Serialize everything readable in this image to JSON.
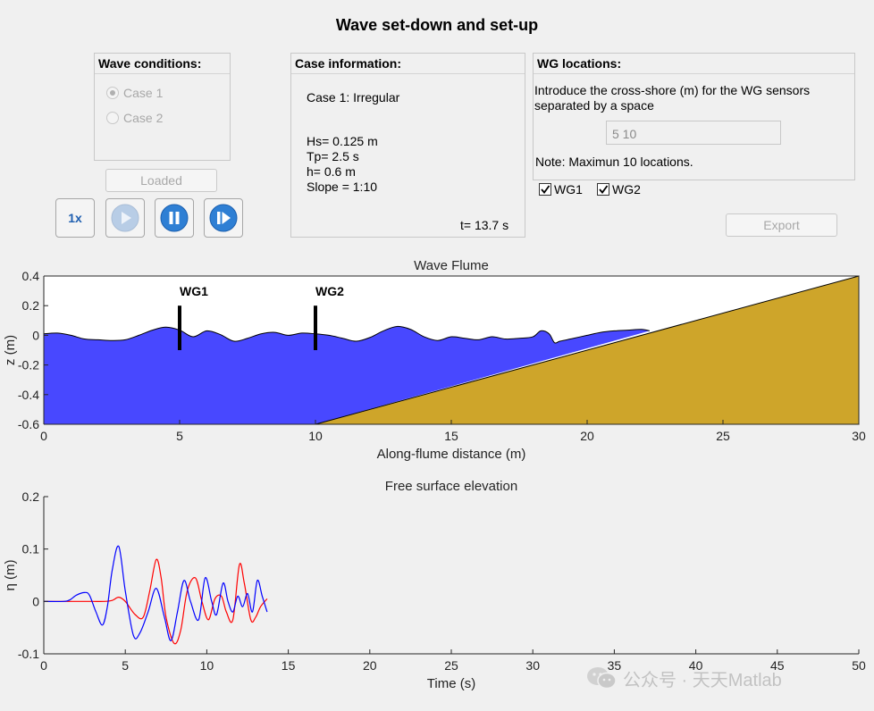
{
  "window": {
    "title": "Wave set-down and set-up"
  },
  "wave_conditions": {
    "title": "Wave conditions:",
    "options": [
      {
        "label": "Case 1",
        "selected": true
      },
      {
        "label": "Case 2",
        "selected": false
      }
    ],
    "load_button": "Loaded"
  },
  "playback": {
    "speed_label": "1x",
    "buttons": [
      "play-icon",
      "pause-icon",
      "step-forward-icon"
    ]
  },
  "case_info": {
    "title": "Case information:",
    "case_name": "Case 1: Irregular",
    "hs": "Hs= 0.125 m",
    "tp": "Tp= 2.5 s",
    "h": "h= 0.6 m",
    "slope": "Slope = 1:10",
    "time": "t= 13.7 s"
  },
  "wg_locations": {
    "title": "WG locations:",
    "instruction": "Introduce the cross-shore (m) for the WG sensors separated by a space",
    "input_value": "5 10",
    "note": "Note: Maximun 10 locations.",
    "checkboxes": [
      {
        "label": "WG1",
        "checked": true
      },
      {
        "label": "WG2",
        "checked": true
      }
    ],
    "export_button": "Export"
  },
  "watermark": "公众号 · 天天Matlab",
  "colors": {
    "water": "#4848ff",
    "beach": "#cea52a",
    "wg1": "#0000ff",
    "wg2": "#ff0000"
  },
  "chart_data": [
    {
      "type": "area",
      "title": "Wave Flume",
      "xlabel": "Along-flume distance (m)",
      "ylabel": "z (m)",
      "xlim": [
        0,
        30
      ],
      "ylim": [
        -0.6,
        0.4
      ],
      "xticks": [
        0,
        5,
        10,
        15,
        20,
        25,
        30
      ],
      "yticks": [
        -0.6,
        -0.4,
        -0.2,
        0,
        0.2,
        0.4
      ],
      "grid": false,
      "water_surface": {
        "x": [
          0,
          0.5,
          1,
          1.5,
          2,
          2.5,
          3,
          3.5,
          4,
          4.5,
          5,
          5.5,
          6,
          6.5,
          7,
          7.5,
          8,
          8.5,
          9,
          9.5,
          10,
          10.5,
          11,
          11.5,
          12,
          12.5,
          13,
          13.5,
          14,
          14.5,
          15,
          15.5,
          16,
          16.5,
          17,
          17.5,
          18,
          18.3,
          18.6,
          18.8,
          19,
          19.5,
          20,
          20.5,
          21,
          21.5,
          22,
          22.3
        ],
        "eta": [
          0.01,
          0.015,
          0.0,
          -0.025,
          -0.03,
          -0.035,
          -0.03,
          0.0,
          0.035,
          0.055,
          0.035,
          -0.01,
          0.03,
          0.005,
          -0.04,
          -0.02,
          0.01,
          0.02,
          0.0,
          0.015,
          0.01,
          0.0,
          -0.02,
          -0.04,
          -0.015,
          0.03,
          0.06,
          0.04,
          -0.01,
          -0.035,
          -0.01,
          -0.02,
          -0.03,
          -0.01,
          -0.025,
          -0.02,
          -0.01,
          0.03,
          0.01,
          -0.05,
          -0.04,
          -0.02,
          0.0,
          0.02,
          0.03,
          0.035,
          0.04,
          0.03
        ]
      },
      "bathymetry": {
        "toe_x": 10,
        "toe_z": -0.6,
        "slope": 0.1,
        "end_x": 30,
        "end_z": 0.4
      },
      "gauges": [
        {
          "name": "WG1",
          "x": 5
        },
        {
          "name": "WG2",
          "x": 10
        }
      ]
    },
    {
      "type": "line",
      "title": "Free surface elevation",
      "xlabel": "Time (s)",
      "ylabel": "η (m)",
      "xlim": [
        0,
        50
      ],
      "ylim": [
        -0.1,
        0.2
      ],
      "xticks": [
        0,
        5,
        10,
        15,
        20,
        25,
        30,
        35,
        40,
        45,
        50
      ],
      "yticks": [
        -0.1,
        0,
        0.1,
        0.2
      ],
      "grid": false,
      "series": [
        {
          "name": "WG1",
          "t": [
            0,
            1.2,
            1.6,
            2.0,
            2.5,
            2.8,
            3.2,
            3.6,
            3.9,
            4.2,
            4.6,
            5.0,
            5.5,
            5.9,
            6.4,
            6.9,
            7.4,
            7.8,
            8.2,
            8.6,
            9.0,
            9.5,
            9.9,
            10.3,
            10.6,
            11.0,
            11.3,
            11.6,
            11.9,
            12.2,
            12.5,
            12.8,
            13.1,
            13.4,
            13.7
          ],
          "eta": [
            0,
            0,
            0.003,
            0.012,
            0.017,
            0.012,
            -0.02,
            -0.045,
            -0.01,
            0.06,
            0.105,
            0.02,
            -0.065,
            -0.06,
            -0.02,
            0.025,
            -0.03,
            -0.075,
            -0.02,
            0.04,
            0.0,
            -0.035,
            0.045,
            0.0,
            -0.025,
            0.035,
            0.0,
            -0.02,
            0.01,
            -0.01,
            0.015,
            -0.02,
            0.04,
            0.01,
            -0.02
          ]
        },
        {
          "name": "WG2",
          "t": [
            0,
            2.0,
            3.0,
            3.7,
            4.2,
            4.6,
            5.0,
            5.6,
            6.1,
            6.5,
            6.9,
            7.2,
            7.5,
            8.0,
            8.4,
            8.8,
            9.3,
            9.7,
            10.1,
            10.5,
            10.9,
            11.2,
            11.6,
            12.0,
            12.3,
            12.7,
            13.0,
            13.3,
            13.7
          ],
          "eta": [
            0,
            0,
            0.0,
            0.0,
            0.002,
            0.008,
            0.0,
            -0.025,
            -0.03,
            0.02,
            0.08,
            0.045,
            -0.03,
            -0.08,
            -0.055,
            0.02,
            0.045,
            0.0,
            -0.035,
            0.005,
            0.01,
            -0.02,
            -0.035,
            0.07,
            0.035,
            -0.035,
            -0.03,
            -0.01,
            0.005
          ]
        }
      ]
    }
  ]
}
